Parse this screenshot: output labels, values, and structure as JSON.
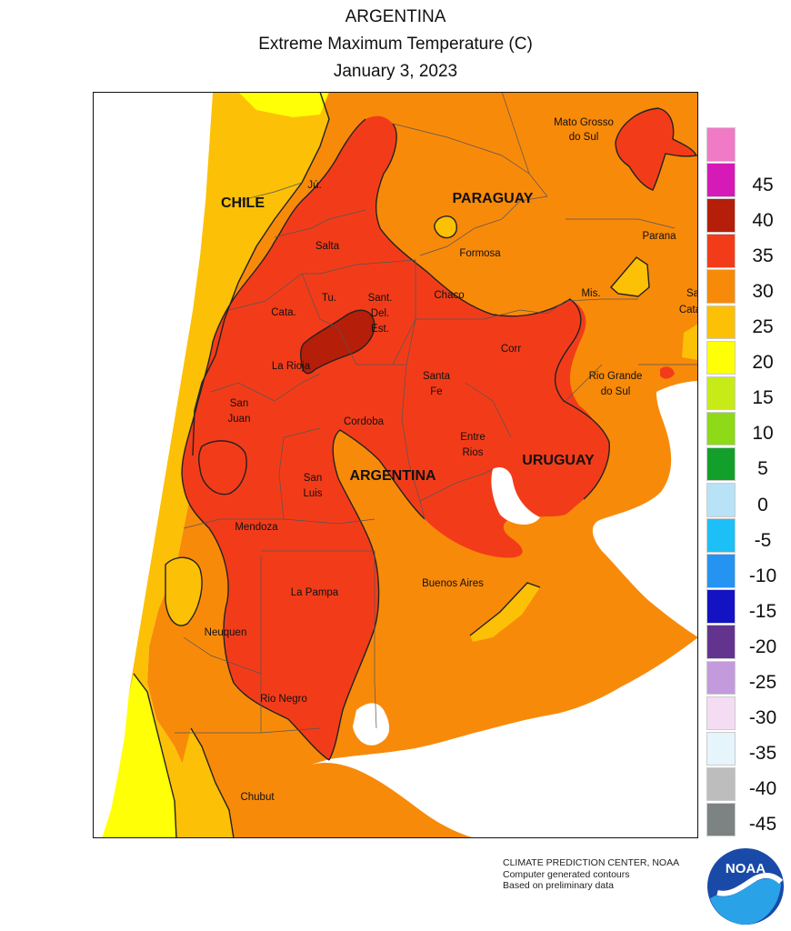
{
  "header": {
    "country": "ARGENTINA",
    "variable": "Extreme Maximum Temperature (C)",
    "date": "January 3, 2023"
  },
  "legend": {
    "bins": [
      {
        "color": "#f07ac6"
      },
      {
        "color": "#d61ab8",
        "label": "45"
      },
      {
        "color": "#b51e08",
        "label": "40"
      },
      {
        "color": "#f23c19",
        "label": "35"
      },
      {
        "color": "#f88a0a",
        "label": "30"
      },
      {
        "color": "#fcc006",
        "label": "25"
      },
      {
        "color": "#ffff06",
        "label": "20"
      },
      {
        "color": "#c7eb16",
        "label": "15"
      },
      {
        "color": "#8ed918",
        "label": "10"
      },
      {
        "color": "#13a02a",
        "label": "5"
      },
      {
        "color": "#b8e2f6",
        "label": "0"
      },
      {
        "color": "#1cc0f6",
        "label": "-5"
      },
      {
        "color": "#2593f2",
        "label": "-10"
      },
      {
        "color": "#1313c3",
        "label": "-15"
      },
      {
        "color": "#63348f",
        "label": "-20"
      },
      {
        "color": "#c39bdc",
        "label": "-25"
      },
      {
        "color": "#f4dcf2",
        "label": "-30"
      },
      {
        "color": "#e6f4fc",
        "label": "-35"
      },
      {
        "color": "#bdbdbd",
        "label": "-40"
      },
      {
        "color": "#7d8282",
        "label": "-45"
      }
    ]
  },
  "map": {
    "colors": {
      "deep": "#b51e08",
      "hot": "#f23c19",
      "warm": "#f88a0a",
      "mild": "#fcc006",
      "cool": "#ffff06",
      "ocean": "#ffffff",
      "stroke": "#222222"
    },
    "countries": [
      "CHILE",
      "PARAGUAY",
      "ARGENTINA",
      "URUGUAY"
    ],
    "regions": [
      "Mato Grosso do Sul",
      "Jú.",
      "Salta",
      "Formosa",
      "Parana",
      "Tu.",
      "Sant. Del. Est.",
      "Chaco",
      "Mis.",
      "Sa Cata",
      "Cata.",
      "Corr",
      "La Rioja",
      "Rio Grande do Sul",
      "San Juan",
      "Santa Fe",
      "Cordoba",
      "Entre Rios",
      "San Luis",
      "Mendoza",
      "Buenos Aires",
      "La Pampa",
      "Neuquen",
      "Rio Negro",
      "Chubut"
    ]
  },
  "footer": {
    "line1": "CLIMATE PREDICTION CENTER, NOAA",
    "line2": "Computer generated contours",
    "line3": "Based on preliminary data",
    "logo_text": "NOAA"
  }
}
